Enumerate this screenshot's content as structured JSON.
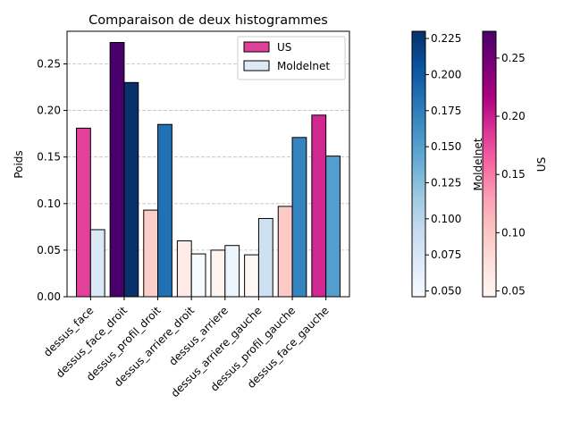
{
  "chart_data": {
    "type": "bar",
    "title": "Comparaison de deux histogrammes",
    "xlabel": "",
    "ylabel": "Poids",
    "ylim": [
      0,
      0.285
    ],
    "yticks": [
      0.0,
      0.05,
      0.1,
      0.15,
      0.2,
      0.25
    ],
    "ytick_labels": [
      "0.00",
      "0.05",
      "0.10",
      "0.15",
      "0.20",
      "0.25"
    ],
    "grid": "y-dashed",
    "legend_position": "top-right",
    "categories": [
      "dessus_face",
      "dessus_face_droit",
      "dessus_profil_droit",
      "dessus_arriere_droit",
      "dessus_arriere",
      "dessus_arriere_gauche",
      "dessus_profil_gauche",
      "dessus_face_gauche"
    ],
    "series": [
      {
        "name": "US",
        "legend_color": "#e0409a",
        "colormap": "RdPu",
        "values": [
          0.181,
          0.273,
          0.093,
          0.06,
          0.05,
          0.045,
          0.097,
          0.195
        ]
      },
      {
        "name": "Moldelnet",
        "legend_color": "#dde9f5",
        "colormap": "Blues",
        "values": [
          0.072,
          0.23,
          0.185,
          0.046,
          0.055,
          0.084,
          0.171,
          0.151
        ]
      }
    ],
    "colorbars": [
      {
        "label": "Moldelnet",
        "colormap": "Blues",
        "range": [
          0.046,
          0.23
        ],
        "ticks": [
          0.05,
          0.075,
          0.1,
          0.125,
          0.15,
          0.175,
          0.2,
          0.225
        ],
        "tick_labels": [
          "0.050",
          "0.075",
          "0.100",
          "0.125",
          "0.150",
          "0.175",
          "0.200",
          "0.225"
        ]
      },
      {
        "label": "US",
        "colormap": "RdPu",
        "range": [
          0.045,
          0.273
        ],
        "ticks": [
          0.05,
          0.1,
          0.15,
          0.2,
          0.25
        ],
        "tick_labels": [
          "0.05",
          "0.10",
          "0.15",
          "0.20",
          "0.25"
        ]
      }
    ]
  }
}
